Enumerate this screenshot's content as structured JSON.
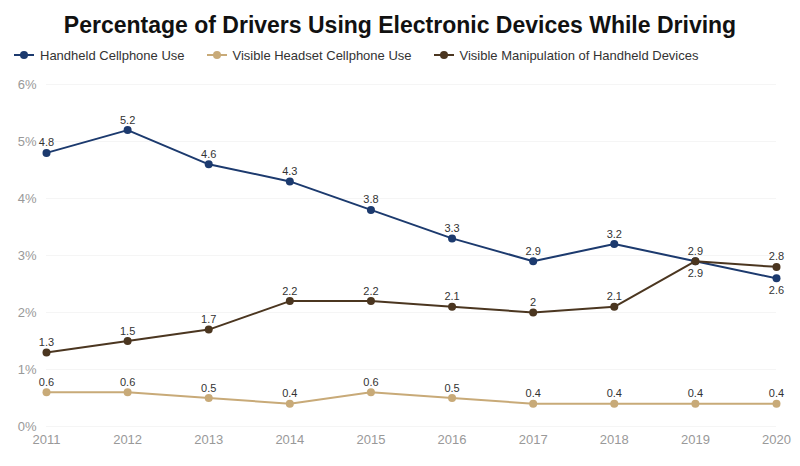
{
  "chart_data": {
    "type": "line",
    "title": "Percentage of Drivers Using Electronic Devices While Driving",
    "x": [
      2011,
      2012,
      2013,
      2014,
      2015,
      2016,
      2017,
      2018,
      2019,
      2020
    ],
    "series": [
      {
        "name": "Handheld Cellphone Use",
        "color": "#1c3a6e",
        "values": [
          4.8,
          5.2,
          4.6,
          4.3,
          3.8,
          3.3,
          2.9,
          3.2,
          2.9,
          2.6
        ]
      },
      {
        "name": "Visible Headset Cellphone Use",
        "color": "#c8aa78",
        "values": [
          0.6,
          0.6,
          0.5,
          0.4,
          0.6,
          0.5,
          0.4,
          0.4,
          0.4,
          0.4
        ]
      },
      {
        "name": "Visible Manipulation of Handheld Devices",
        "color": "#4b3620",
        "values": [
          1.3,
          1.5,
          1.7,
          2.2,
          2.2,
          2.1,
          2,
          2.1,
          2.9,
          2.8
        ]
      }
    ],
    "xlim": [
      2011,
      2020
    ],
    "xticks": [
      2011,
      2012,
      2013,
      2014,
      2015,
      2016,
      2017,
      2018,
      2019,
      2020
    ],
    "ylim": [
      0,
      6
    ],
    "yticks": [
      {
        "value": 0,
        "label": "0%"
      },
      {
        "value": 1,
        "label": "1%"
      },
      {
        "value": 2,
        "label": "2%"
      },
      {
        "value": 3,
        "label": "3%"
      },
      {
        "value": 4,
        "label": "4%"
      },
      {
        "value": 5,
        "label": "5%"
      },
      {
        "value": 6,
        "label": "6%"
      }
    ],
    "grid": true,
    "legend": "top",
    "marker": "circle",
    "data_labels": true
  }
}
